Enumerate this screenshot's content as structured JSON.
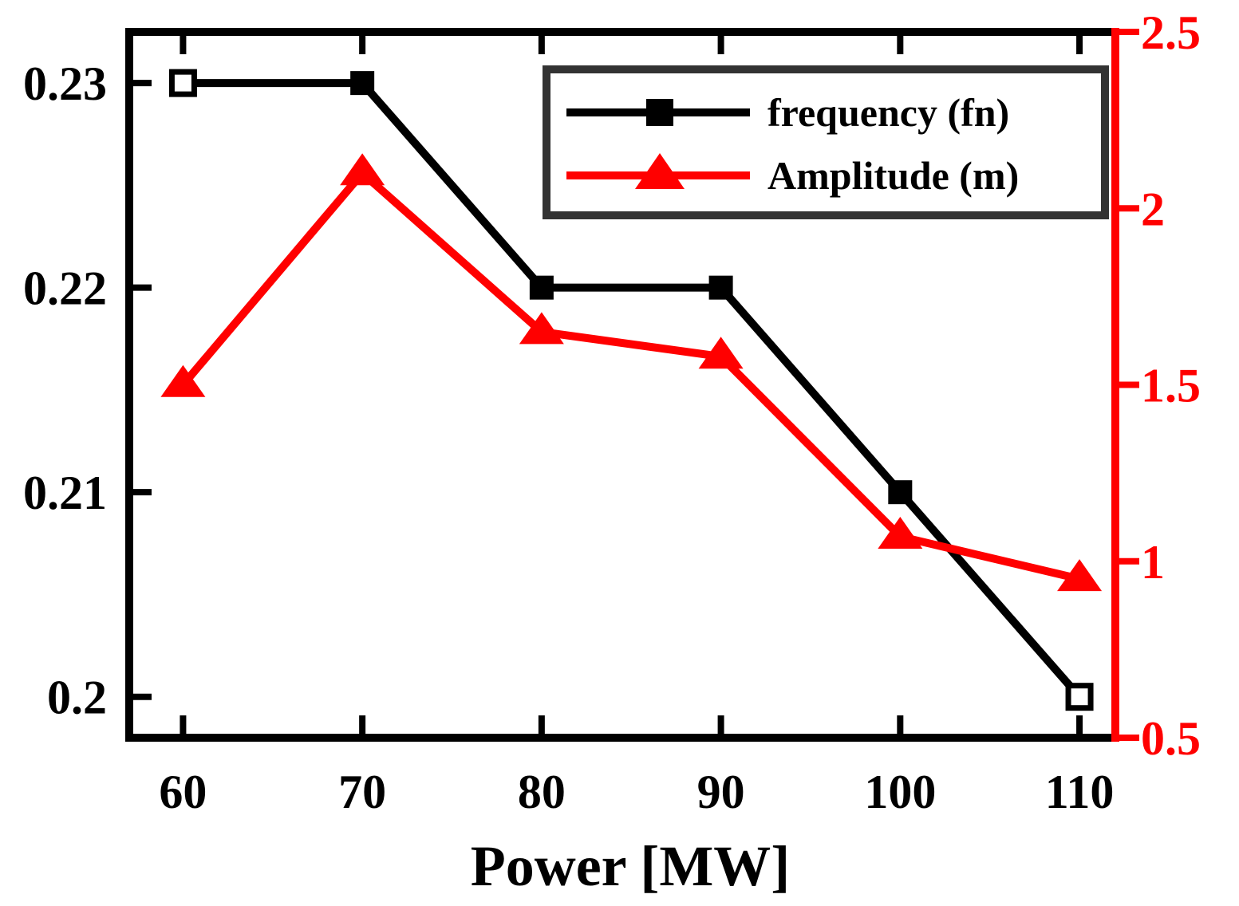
{
  "chart_data": {
    "type": "line",
    "title": "",
    "xlabel": "Power [MW]",
    "ylabel": "",
    "y2label": "",
    "x": [
      60,
      70,
      80,
      90,
      100,
      110
    ],
    "x_ticks": [
      "60",
      "70",
      "80",
      "90",
      "100",
      "110"
    ],
    "xlim": [
      57,
      112
    ],
    "ylim": [
      0.198,
      0.2325
    ],
    "y_ticks": [
      "0.2",
      "0.21",
      "0.22",
      "0.23"
    ],
    "y2lim": [
      0.5,
      2.5
    ],
    "y2_ticks": [
      "0.5",
      "1",
      "1.5",
      "2",
      "2.5"
    ],
    "grid": false,
    "legend_position": "top-right",
    "series": [
      {
        "name": "frequency (fn)",
        "axis": "left",
        "color": "#000000",
        "marker": "square",
        "values": [
          0.23,
          0.23,
          0.22,
          0.22,
          0.21,
          0.2
        ]
      },
      {
        "name": "Amplitude (m)",
        "axis": "right",
        "color": "#ff0000",
        "marker": "triangle",
        "values": [
          1.5,
          2.1,
          1.65,
          1.58,
          1.07,
          0.95
        ]
      }
    ]
  }
}
